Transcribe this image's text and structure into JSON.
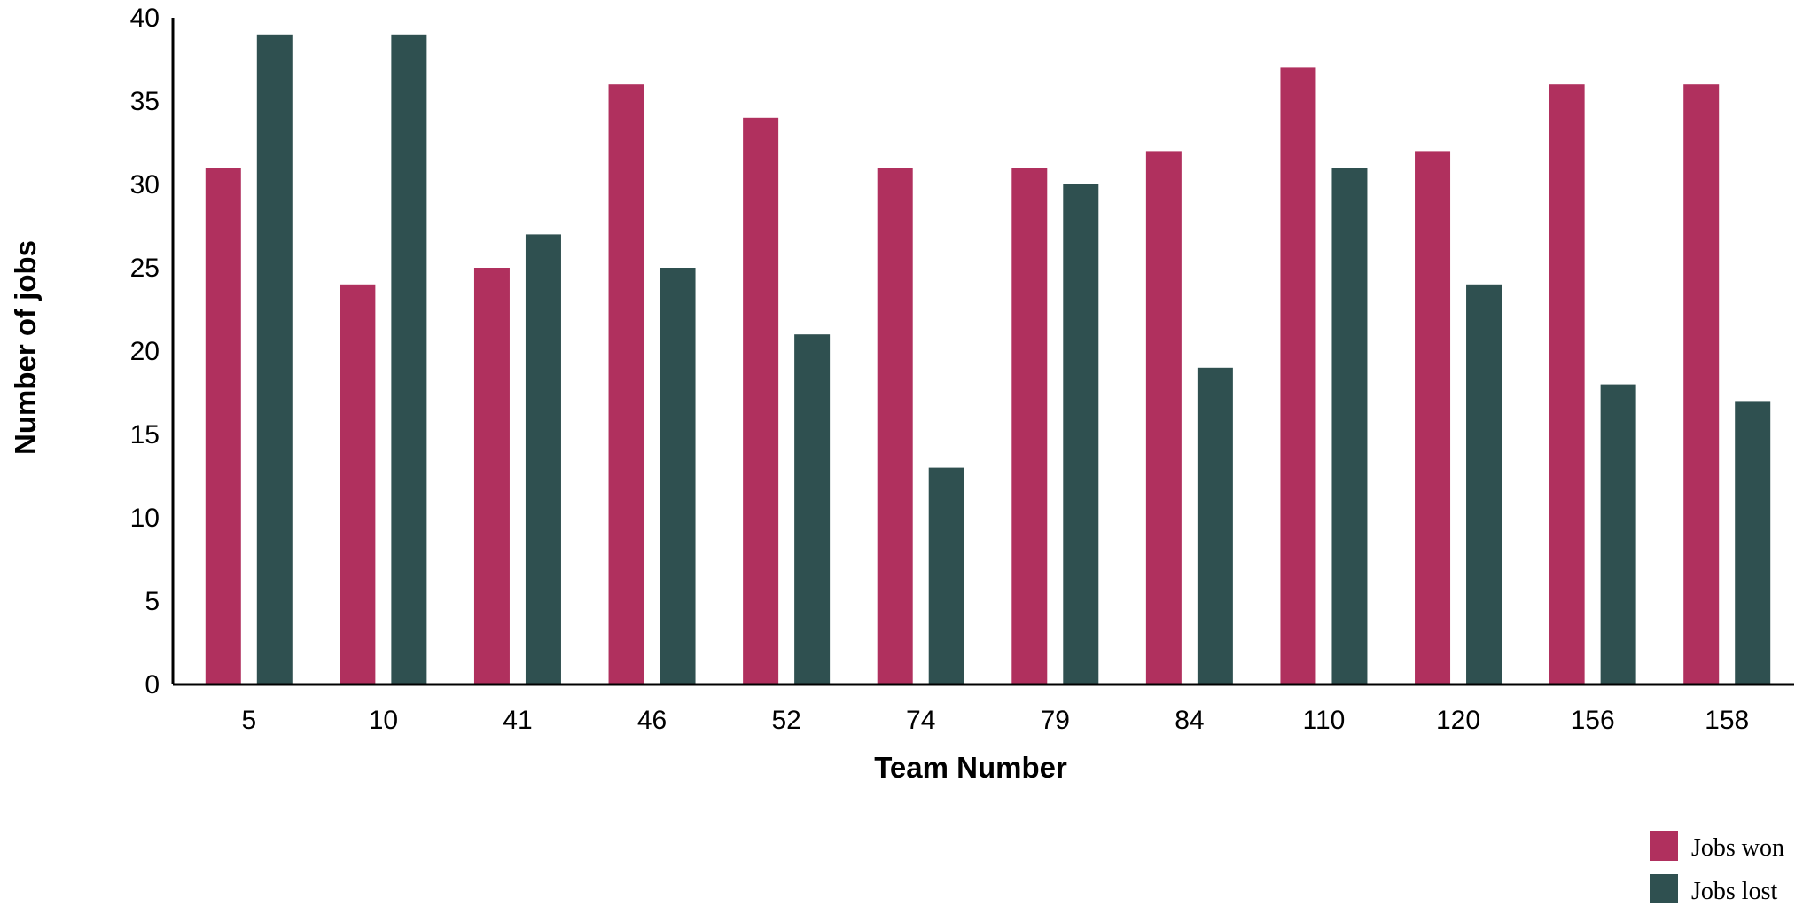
{
  "colors": {
    "jobs_won": "#B0305E",
    "jobs_lost": "#2F5050",
    "axis": "#000000"
  },
  "chart_data": {
    "type": "bar",
    "title": "",
    "xlabel": "Team Number",
    "ylabel": "Number of jobs",
    "ylim": [
      0,
      40
    ],
    "yticks": [
      0,
      5,
      10,
      15,
      20,
      25,
      30,
      35,
      40
    ],
    "categories": [
      "5",
      "10",
      "41",
      "46",
      "52",
      "74",
      "79",
      "84",
      "110",
      "120",
      "156",
      "158"
    ],
    "series": [
      {
        "name": "Jobs won",
        "color": "#B0305E",
        "values": [
          31,
          24,
          25,
          36,
          34,
          31,
          31,
          32,
          37,
          32,
          36,
          36
        ]
      },
      {
        "name": "Jobs lost",
        "color": "#2F5050",
        "values": [
          39,
          39,
          27,
          25,
          21,
          13,
          30,
          19,
          31,
          24,
          18,
          17
        ]
      }
    ],
    "grid": false,
    "legend_position": "bottom-right"
  }
}
